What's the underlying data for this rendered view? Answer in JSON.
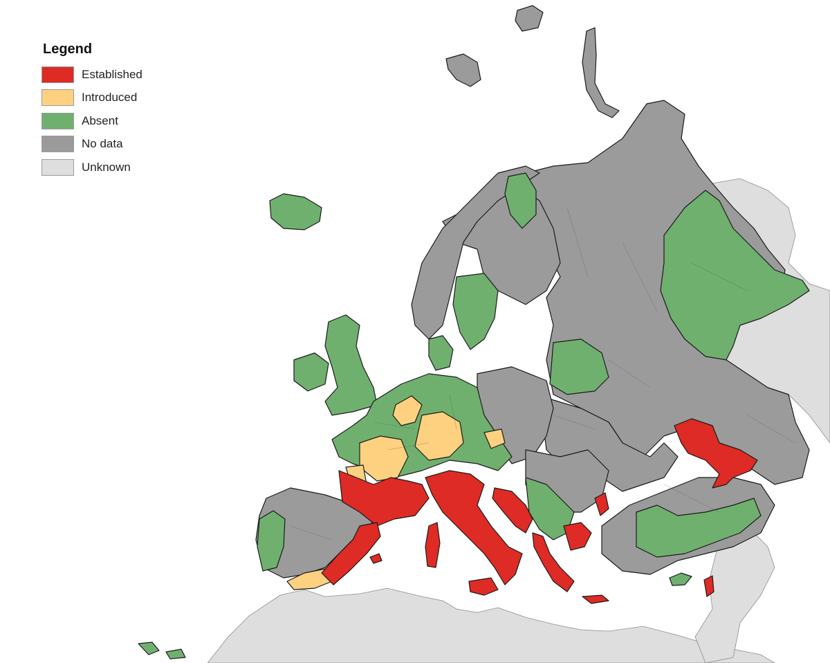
{
  "legend": {
    "title": "Legend",
    "items": [
      {
        "label": "Established",
        "color": "#de2b25"
      },
      {
        "label": "Introduced",
        "color": "#fdd17f"
      },
      {
        "label": "Absent",
        "color": "#6fb06f"
      },
      {
        "label": "No data",
        "color": "#9b9b9b"
      },
      {
        "label": "Unknown",
        "color": "#dedede"
      }
    ]
  }
}
